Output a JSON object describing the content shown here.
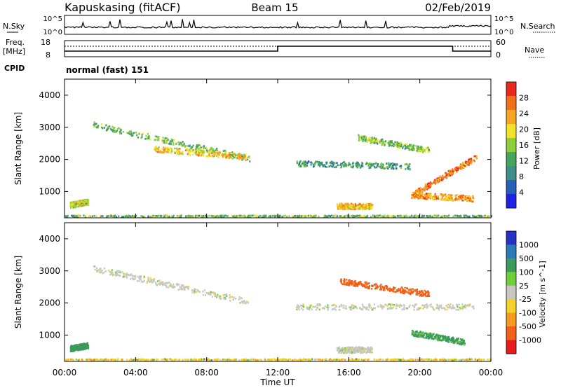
{
  "header": {
    "station": "Kapuskasing (fitACF)",
    "beam": "Beam 15",
    "date": "02/Feb/2019"
  },
  "top_panels": {
    "nsky_label": "N.Sky",
    "nsky_ticks": [
      "10^5",
      "10^0"
    ],
    "nsearch_label": "N.Search",
    "nsearch_ticks": [
      "10^5",
      "10^0"
    ],
    "freq_label": "Freq.",
    "freq_unit": "[MHz]",
    "freq_ticks": [
      "18",
      "8"
    ],
    "nave_label": "Nave",
    "nave_ticks": [
      "60",
      "0"
    ],
    "cpid_label": "CPID",
    "cpid_value": "normal (fast) 151"
  },
  "time_axis": {
    "label": "Time UT",
    "ticks": [
      "00:00",
      "04:00",
      "08:00",
      "12:00",
      "16:00",
      "20:00",
      "00:00"
    ]
  },
  "chart_data": [
    {
      "type": "heatmap",
      "title": "",
      "xlabel": "",
      "ylabel": "Slant Range [km]",
      "x_range_hours": [
        0,
        24
      ],
      "y_range_km": [
        180,
        4500
      ],
      "y_ticks": [
        "1000",
        "2000",
        "3000",
        "4000"
      ],
      "colorbar": {
        "label": "Power [dB]",
        "ticks": [
          "4",
          "8",
          "12",
          "16",
          "20",
          "24",
          "28"
        ],
        "colors": [
          "#1e22e6",
          "#2a5fb8",
          "#3f8f8a",
          "#47a45c",
          "#8ccf3a",
          "#f2e22b",
          "#f5a623",
          "#f07018",
          "#e8281c"
        ]
      },
      "regions": [
        {
          "name": "arc 02-10h",
          "t_start": 1.6,
          "t_end": 10.4,
          "r_start": 3100,
          "r_end": 2050,
          "value": 14
        },
        {
          "name": "arc core",
          "t_start": 5.0,
          "t_end": 10.2,
          "r_start": 2350,
          "r_end": 2100,
          "value": 21
        },
        {
          "name": "near range 00-01h",
          "t_start": 0.3,
          "t_end": 1.3,
          "r_start": 600,
          "r_end": 700,
          "value": 18
        },
        {
          "name": "evening band",
          "t_start": 13.0,
          "t_end": 19.5,
          "r_start": 1900,
          "r_end": 1800,
          "value": 11
        },
        {
          "name": "evening upper",
          "t_start": 16.5,
          "t_end": 20.5,
          "r_start": 2700,
          "r_end": 2300,
          "value": 15
        },
        {
          "name": "sunset rise",
          "t_start": 19.5,
          "t_end": 23.2,
          "r_start": 900,
          "r_end": 2100,
          "value": 26
        },
        {
          "name": "low band 19-23h",
          "t_start": 19.5,
          "t_end": 23.0,
          "r_start": 900,
          "r_end": 800,
          "value": 24
        },
        {
          "name": "patch 15-17h",
          "t_start": 15.3,
          "t_end": 17.3,
          "r_start": 560,
          "r_end": 560,
          "value": 22
        },
        {
          "name": "ground scatter floor",
          "t_start": 0,
          "t_end": 24,
          "r_start": 260,
          "r_end": 260,
          "value": 16
        }
      ]
    },
    {
      "type": "heatmap",
      "title": "",
      "xlabel": "Time UT",
      "ylabel": "Slant Range [km]",
      "x_range_hours": [
        0,
        24
      ],
      "y_range_km": [
        180,
        4500
      ],
      "y_ticks": [
        "1000",
        "2000",
        "3000",
        "4000"
      ],
      "colorbar": {
        "label": "Velocity [m s^-1]",
        "ticks": [
          "1000",
          "500",
          "100",
          "25",
          "-25",
          "-100",
          "-500",
          "-1000"
        ],
        "colors": [
          "#2432c8",
          "#2a7ab8",
          "#3c9a5c",
          "#6fcf3a",
          "#c8c8c0",
          "#f2d22b",
          "#f59a23",
          "#f06018",
          "#e81c1c"
        ]
      },
      "regions": [
        {
          "name": "arc 02-10h",
          "t_start": 1.6,
          "t_end": 10.4,
          "r_start": 3100,
          "r_end": 2050,
          "value": 0
        },
        {
          "name": "near range 00-01h",
          "t_start": 0.3,
          "t_end": 1.3,
          "r_start": 600,
          "r_end": 700,
          "value": 150
        },
        {
          "name": "evening band",
          "t_start": 13.0,
          "t_end": 23.0,
          "r_start": 1900,
          "r_end": 1900,
          "value": 0
        },
        {
          "name": "evening upper red",
          "t_start": 15.5,
          "t_end": 20.5,
          "r_start": 2700,
          "r_end": 2300,
          "value": -600
        },
        {
          "name": "green patches",
          "t_start": 19.5,
          "t_end": 22.5,
          "r_start": 1100,
          "r_end": 800,
          "value": 120
        },
        {
          "name": "patch 15-17h",
          "t_start": 15.3,
          "t_end": 17.3,
          "r_start": 560,
          "r_end": 560,
          "value": 0
        },
        {
          "name": "ground scatter floor",
          "t_start": 0,
          "t_end": 24,
          "r_start": 260,
          "r_end": 260,
          "value": -80
        }
      ]
    }
  ]
}
